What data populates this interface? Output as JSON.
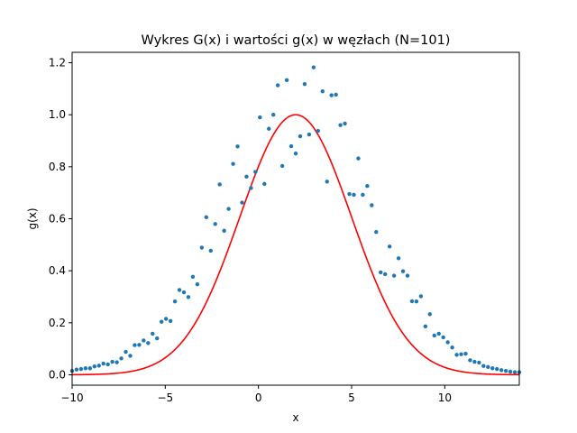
{
  "chart_data": {
    "type": "scatter",
    "title": "Wykres G(x) i wartości g(x) w węzłach (N=101)",
    "xlabel": "x",
    "ylabel": "g(x)",
    "xlim": [
      -10,
      14
    ],
    "ylim": [
      -0.04,
      1.24
    ],
    "xticks": [
      -10,
      -5,
      0,
      5,
      10
    ],
    "yticks": [
      0.0,
      0.2,
      0.4,
      0.6,
      0.8,
      1.0,
      1.2
    ],
    "xtick_labels": [
      "−10",
      "−5",
      "0",
      "5",
      "10"
    ],
    "ytick_labels": [
      "0.0",
      "0.2",
      "0.4",
      "0.6",
      "0.8",
      "1.0",
      "1.2"
    ],
    "grid": false,
    "colors": {
      "points": "#1f77b4",
      "curve": "#ff0000",
      "frame": "#000000"
    },
    "series": [
      {
        "type": "scatter",
        "x": [
          -10.0,
          -9.76,
          -9.52,
          -9.28,
          -9.04,
          -8.8,
          -8.56,
          -8.32,
          -8.08,
          -7.84,
          -7.6,
          -7.36,
          -7.12,
          -6.88,
          -6.64,
          -6.4,
          -6.16,
          -5.92,
          -5.68,
          -5.44,
          -5.2,
          -4.96,
          -4.72,
          -4.48,
          -4.24,
          -4.0,
          -3.76,
          -3.52,
          -3.28,
          -3.04,
          -2.8,
          -2.56,
          -2.32,
          -2.08,
          -1.84,
          -1.6,
          -1.36,
          -1.12,
          -0.88,
          -0.64,
          -0.4,
          -0.16,
          0.08,
          0.32,
          0.56,
          0.8,
          1.04,
          1.28,
          1.52,
          1.76,
          2.0,
          2.24,
          2.48,
          2.72,
          2.96,
          3.2,
          3.44,
          3.68,
          3.92,
          4.16,
          4.4,
          4.64,
          4.88,
          5.12,
          5.36,
          5.6,
          5.84,
          6.08,
          6.32,
          6.56,
          6.8,
          7.04,
          7.28,
          7.52,
          7.76,
          8.0,
          8.24,
          8.48,
          8.72,
          8.96,
          9.2,
          9.44,
          9.68,
          9.92,
          10.16,
          10.4,
          10.64,
          10.88,
          11.12,
          11.36,
          11.6,
          11.84,
          12.08,
          12.32,
          12.56,
          12.8,
          13.04,
          13.28,
          13.52,
          13.76,
          14.0
        ],
        "y": [
          0.015,
          0.02,
          0.022,
          0.025,
          0.025,
          0.032,
          0.035,
          0.043,
          0.04,
          0.05,
          0.048,
          0.063,
          0.088,
          0.073,
          0.114,
          0.115,
          0.132,
          0.122,
          0.158,
          0.14,
          0.204,
          0.215,
          0.207,
          0.282,
          0.326,
          0.317,
          0.299,
          0.377,
          0.348,
          0.489,
          0.606,
          0.477,
          0.58,
          0.732,
          0.554,
          0.638,
          0.811,
          0.878,
          0.662,
          0.762,
          0.718,
          0.78,
          0.99,
          0.734,
          0.946,
          1.0,
          1.113,
          0.803,
          1.133,
          0.879,
          0.851,
          0.917,
          1.118,
          0.924,
          1.182,
          0.938,
          1.09,
          0.743,
          1.075,
          1.077,
          0.96,
          0.966,
          0.695,
          0.692,
          0.832,
          0.692,
          0.726,
          0.652,
          0.549,
          0.394,
          0.387,
          0.493,
          0.381,
          0.448,
          0.398,
          0.381,
          0.283,
          0.282,
          0.302,
          0.186,
          0.233,
          0.151,
          0.158,
          0.144,
          0.125,
          0.105,
          0.077,
          0.079,
          0.081,
          0.056,
          0.05,
          0.047,
          0.034,
          0.03,
          0.025,
          0.022,
          0.018,
          0.015,
          0.012,
          0.01,
          0.01
        ]
      },
      {
        "type": "line",
        "function": "G(x) = exp(-(x-2)^2 / 18)",
        "mu": 2.0,
        "sigma": 3.0,
        "amplitude": 1.0
      }
    ]
  }
}
